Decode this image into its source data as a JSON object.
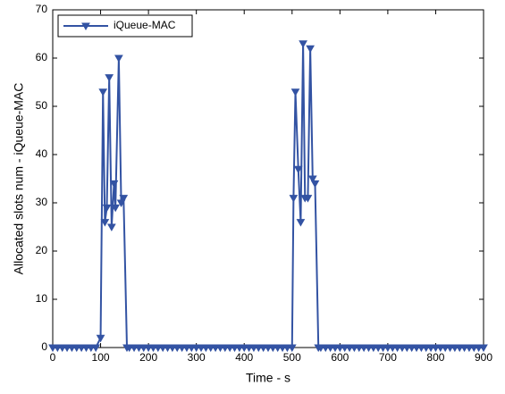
{
  "chart_data": {
    "type": "line",
    "xlabel": "Time - s",
    "ylabel": "Allocated slots num - iQueue-MAC",
    "x": [
      0,
      10,
      20,
      30,
      40,
      50,
      60,
      70,
      80,
      90,
      100,
      105,
      109,
      113,
      118,
      123,
      128,
      131,
      138,
      143,
      148,
      155,
      160,
      170,
      180,
      190,
      200,
      210,
      220,
      230,
      240,
      250,
      260,
      270,
      280,
      290,
      300,
      310,
      320,
      330,
      340,
      350,
      360,
      370,
      380,
      390,
      400,
      410,
      420,
      430,
      440,
      450,
      460,
      470,
      480,
      490,
      500,
      503,
      507,
      513,
      518,
      523,
      527,
      533,
      538,
      543,
      548,
      555,
      560,
      570,
      580,
      590,
      600,
      610,
      620,
      630,
      640,
      650,
      660,
      670,
      680,
      690,
      700,
      710,
      720,
      730,
      740,
      750,
      760,
      770,
      780,
      790,
      800,
      810,
      820,
      830,
      840,
      850,
      860,
      870,
      880,
      890,
      900
    ],
    "series": [
      {
        "name": "iQueue-MAC",
        "color": "#3353a3",
        "marker": "triangle-down",
        "values": [
          0,
          0,
          0,
          0,
          0,
          0,
          0,
          0,
          0,
          0,
          2,
          53,
          26,
          29,
          56,
          25,
          34,
          29,
          60,
          30,
          31,
          0,
          0,
          0,
          0,
          0,
          0,
          0,
          0,
          0,
          0,
          0,
          0,
          0,
          0,
          0,
          0,
          0,
          0,
          0,
          0,
          0,
          0,
          0,
          0,
          0,
          0,
          0,
          0,
          0,
          0,
          0,
          0,
          0,
          0,
          0,
          0,
          31,
          53,
          37,
          26,
          63,
          31,
          31,
          62,
          35,
          34,
          0,
          0,
          0,
          0,
          0,
          0,
          0,
          0,
          0,
          0,
          0,
          0,
          0,
          0,
          0,
          0,
          0,
          0,
          0,
          0,
          0,
          0,
          0,
          0,
          0,
          0,
          0,
          0,
          0,
          0,
          0,
          0,
          0,
          0,
          0,
          0
        ]
      }
    ],
    "xlim": [
      0,
      900
    ],
    "xticks": [
      0,
      100,
      200,
      300,
      400,
      500,
      600,
      700,
      800,
      900
    ],
    "ylim": [
      0,
      70
    ],
    "yticks": [
      0,
      10,
      20,
      30,
      40,
      50,
      60,
      70
    ],
    "grid": false,
    "legend": "upper-left"
  }
}
